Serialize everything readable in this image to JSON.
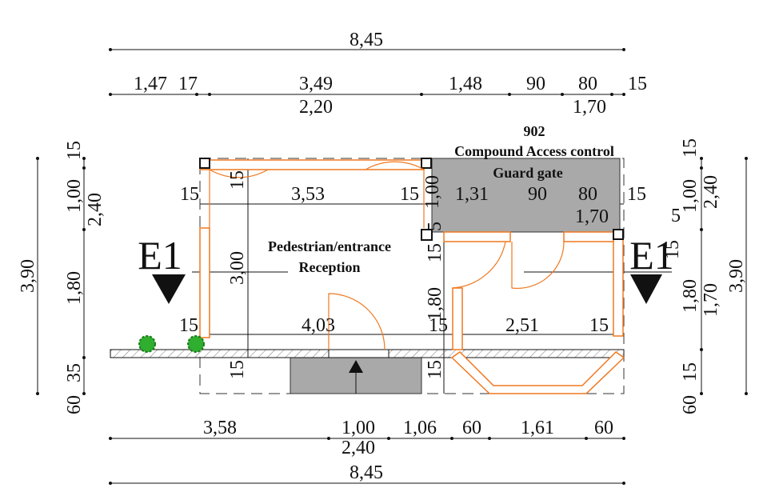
{
  "dimensions": {
    "top_overall": "8,45",
    "top_row": [
      "1,47",
      "17",
      "3,49",
      "1,48",
      "90",
      "80",
      "15"
    ],
    "top_sub": [
      "2,20",
      "1,70"
    ],
    "interior_top": [
      "15",
      "3,53",
      "15",
      "1,00",
      "1,31",
      "90",
      "80",
      "15",
      "1,70"
    ],
    "interior_vertical": [
      "15",
      "3,00",
      "5",
      "15",
      "1,80",
      "15",
      "15"
    ],
    "interior_bottom": [
      "15",
      "4,03",
      "15",
      "2,51",
      "15"
    ],
    "left": [
      "15",
      "1,00",
      "2,40",
      "1,80",
      "3,90",
      "35",
      "60"
    ],
    "right": [
      "15",
      "1,00",
      "2,40",
      "5",
      "15",
      "1,80",
      "1,70",
      "3,90",
      "15",
      "60"
    ],
    "bottom_row": [
      "3,58",
      "1,00",
      "1,06",
      "60",
      "1,61",
      "60"
    ],
    "bottom_sub": "2,40",
    "bottom_overall": "8,45"
  },
  "rooms": [
    {
      "number": "902",
      "name": "Compound Access control",
      "label": "Guard gate"
    },
    {
      "name": "Pedestrian/entrance",
      "label": "Reception"
    }
  ],
  "sections": [
    "E1",
    "E1"
  ]
}
